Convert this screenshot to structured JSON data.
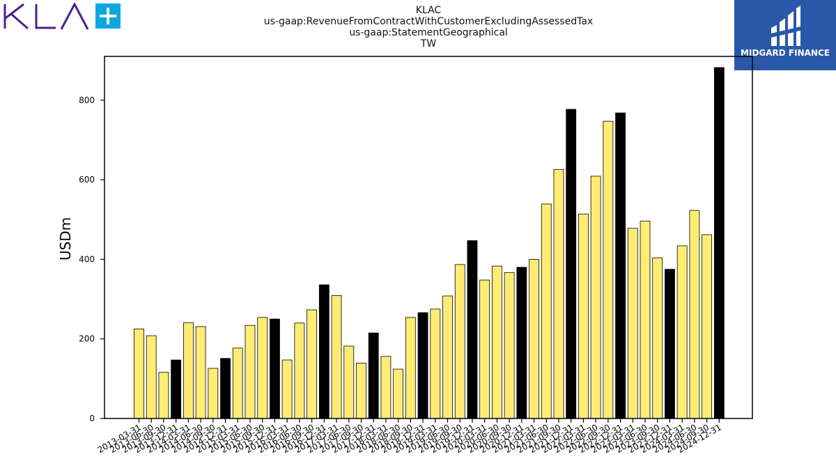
{
  "header": {
    "title_lines": [
      "KLAC",
      "us-gaap:RevenueFromContractWithCustomerExcludingAssessedTax",
      "us-gaap:StatementGeographical",
      "TW"
    ],
    "brand_logo": "KLA+",
    "finance_logo_text": "MIDGARD FINANCE"
  },
  "colors": {
    "bar_default": "#ffec75",
    "bar_q4": "#000000",
    "brand_purple": "#4b1f8c",
    "brand_cyan": "#0aa8e0",
    "finance_blue": "#2a58a8"
  },
  "chart_data": {
    "type": "bar",
    "title": "KLAC us-gaap:RevenueFromContractWithCustomerExcludingAssessedTax us-gaap:StatementGeographical TW",
    "ylabel": "USDm",
    "xlabel": "",
    "ylim": [
      0,
      910
    ],
    "yticks": [
      0,
      200,
      400,
      600,
      800
    ],
    "categories": [
      "2013-03-31",
      "2013-06-30",
      "2013-09-30",
      "2013-12-31",
      "2014-03-31",
      "2014-06-30",
      "2014-09-30",
      "2014-12-31",
      "2015-03-31",
      "2015-06-30",
      "2015-09-30",
      "2015-12-31",
      "2016-03-31",
      "2016-06-30",
      "2016-09-30",
      "2016-12-31",
      "2017-03-31",
      "2017-06-30",
      "2017-09-30",
      "2017-12-31",
      "2018-03-31",
      "2018-06-30",
      "2018-09-30",
      "2018-12-31",
      "2019-03-31",
      "2019-06-30",
      "2019-09-30",
      "2019-12-31",
      "2020-03-31",
      "2020-06-30",
      "2020-09-30",
      "2020-12-31",
      "2021-03-31",
      "2021-06-30",
      "2021-09-30",
      "2021-12-31",
      "2022-03-31",
      "2022-06-30",
      "2022-09-30",
      "2022-12-31",
      "2023-03-31",
      "2023-06-30",
      "2023-09-30",
      "2023-12-31",
      "2024-03-31",
      "2024-06-30",
      "2024-09-30",
      "2024-12-31"
    ],
    "values": [
      225,
      208,
      116,
      147,
      241,
      231,
      126,
      151,
      177,
      234,
      254,
      250,
      147,
      240,
      273,
      336,
      309,
      182,
      139,
      215,
      156,
      124,
      254,
      266,
      275,
      308,
      387,
      447,
      348,
      383,
      367,
      380,
      400,
      539,
      626,
      777,
      514,
      609,
      747,
      768,
      478,
      496,
      404,
      375,
      434,
      523,
      462,
      882
    ],
    "highlight": [
      false,
      false,
      false,
      true,
      false,
      false,
      false,
      true,
      false,
      false,
      false,
      true,
      false,
      false,
      false,
      true,
      false,
      false,
      false,
      true,
      false,
      false,
      false,
      true,
      false,
      false,
      false,
      true,
      false,
      false,
      false,
      true,
      false,
      false,
      false,
      true,
      false,
      false,
      false,
      true,
      false,
      false,
      false,
      true,
      false,
      false,
      false,
      true
    ],
    "grid": false,
    "legend": "none"
  }
}
